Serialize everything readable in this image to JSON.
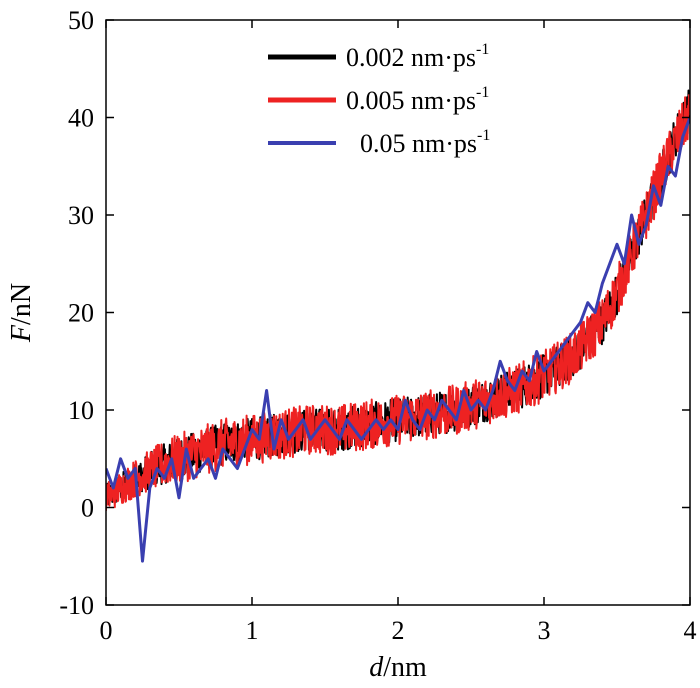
{
  "chart_data": {
    "type": "line",
    "xlabel_var": "d",
    "xlabel_unit": "/nm",
    "ylabel_var": "F",
    "ylabel_unit": "/nN",
    "xlim": [
      0,
      4
    ],
    "ylim": [
      -10,
      50
    ],
    "xticks": [
      0,
      1,
      2,
      3,
      4
    ],
    "yticks": [
      -10,
      0,
      10,
      20,
      30,
      40,
      50
    ],
    "grid": false,
    "legend_position": "top-center",
    "series": [
      {
        "name": "0.002 nm·ps",
        "name_sup": "-1",
        "color": "#000000",
        "noise": 2.2,
        "x": [
          0,
          0.2,
          0.4,
          0.6,
          0.8,
          1.0,
          1.2,
          1.4,
          1.6,
          1.8,
          2.0,
          2.2,
          2.4,
          2.6,
          2.8,
          3.0,
          3.2,
          3.4,
          3.5,
          3.6,
          3.7,
          3.8,
          3.9,
          4.0
        ],
        "y": [
          1,
          3,
          4.5,
          5.5,
          6.5,
          7,
          7.5,
          8,
          8,
          8.5,
          9,
          9.5,
          10,
          11,
          12,
          13.5,
          15.5,
          19,
          22,
          26,
          30,
          34,
          38,
          41
        ]
      },
      {
        "name": "0.005 nm·ps",
        "name_sup": "-1",
        "color": "#ee2222",
        "noise": 2.6,
        "x": [
          0,
          0.2,
          0.4,
          0.6,
          0.8,
          1.0,
          1.2,
          1.4,
          1.6,
          1.8,
          2.0,
          2.2,
          2.4,
          2.6,
          2.8,
          3.0,
          3.2,
          3.4,
          3.5,
          3.6,
          3.7,
          3.8,
          3.9,
          4.0
        ],
        "y": [
          1,
          3,
          4.5,
          5.5,
          6.5,
          7,
          7.5,
          8,
          8,
          8.5,
          9,
          9.5,
          10,
          11,
          12,
          13.5,
          15.5,
          19,
          22,
          26,
          30,
          34,
          37.5,
          40.5
        ]
      },
      {
        "name": "0.05 nm·ps",
        "name_sup": "-1",
        "color": "#3a3fb0",
        "noise": 0,
        "x": [
          0,
          0.05,
          0.1,
          0.15,
          0.2,
          0.25,
          0.3,
          0.35,
          0.4,
          0.45,
          0.5,
          0.55,
          0.6,
          0.65,
          0.7,
          0.75,
          0.8,
          0.85,
          0.9,
          0.95,
          1.0,
          1.05,
          1.1,
          1.15,
          1.2,
          1.25,
          1.3,
          1.35,
          1.4,
          1.45,
          1.5,
          1.55,
          1.6,
          1.65,
          1.7,
          1.75,
          1.8,
          1.85,
          1.9,
          1.95,
          2.0,
          2.05,
          2.1,
          2.15,
          2.2,
          2.25,
          2.3,
          2.35,
          2.4,
          2.45,
          2.5,
          2.55,
          2.6,
          2.65,
          2.7,
          2.75,
          2.8,
          2.85,
          2.9,
          2.95,
          3.0,
          3.05,
          3.1,
          3.15,
          3.2,
          3.25,
          3.3,
          3.35,
          3.4,
          3.45,
          3.5,
          3.55,
          3.6,
          3.65,
          3.7,
          3.75,
          3.8,
          3.85,
          3.9,
          3.95,
          4.0
        ],
        "y": [
          4,
          2,
          5,
          3,
          4,
          -5.5,
          2,
          4,
          3,
          5,
          1,
          6,
          3,
          4,
          5,
          3,
          6,
          5,
          4,
          6,
          8,
          7,
          12,
          6,
          9,
          7,
          8,
          9,
          7,
          8,
          9,
          8,
          7,
          9,
          8,
          7,
          8,
          9,
          8,
          9,
          8,
          11,
          9,
          8,
          10,
          9,
          11,
          10,
          9,
          12,
          10,
          11,
          10,
          12,
          15,
          13,
          12,
          14,
          13,
          16,
          14,
          15,
          16,
          17,
          18,
          19,
          21,
          20,
          23,
          25,
          27,
          25,
          30,
          27,
          29,
          33,
          31,
          35,
          34,
          38,
          40
        ]
      }
    ]
  }
}
